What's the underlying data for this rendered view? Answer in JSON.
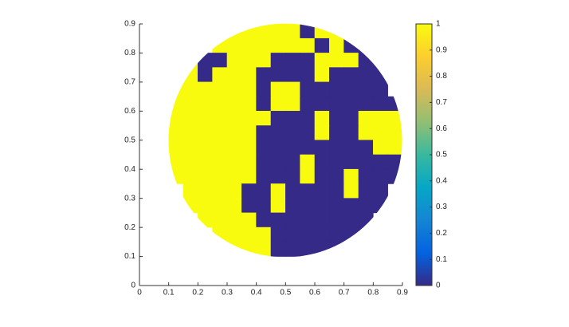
{
  "chart_data": {
    "type": "heatmap",
    "x": [
      0.025,
      0.075,
      0.125,
      0.175,
      0.225,
      0.275,
      0.325,
      0.375,
      0.425,
      0.475,
      0.525,
      0.575,
      0.625,
      0.675,
      0.725,
      0.775,
      0.825,
      0.875
    ],
    "y": [
      0.875,
      0.825,
      0.775,
      0.725,
      0.675,
      0.625,
      0.575,
      0.525,
      0.475,
      0.425,
      0.375,
      0.325,
      0.275,
      0.225,
      0.175,
      0.125,
      0.075,
      0.025
    ],
    "z": [
      [
        null,
        null,
        null,
        null,
        null,
        null,
        1,
        1,
        1,
        1,
        1,
        0,
        1,
        1,
        null,
        null,
        null,
        null
      ],
      [
        null,
        null,
        null,
        null,
        null,
        1,
        1,
        1,
        1,
        1,
        1,
        1,
        0,
        1,
        0,
        0,
        null,
        null
      ],
      [
        null,
        null,
        null,
        1,
        0,
        0,
        1,
        1,
        1,
        0,
        0,
        0,
        1,
        1,
        1,
        0,
        0,
        null
      ],
      [
        null,
        null,
        null,
        1,
        0,
        1,
        1,
        1,
        0,
        0,
        0,
        0,
        1,
        0,
        0,
        0,
        0,
        null
      ],
      [
        null,
        null,
        1,
        1,
        1,
        1,
        1,
        1,
        0,
        1,
        1,
        0,
        0,
        0,
        0,
        0,
        0,
        null
      ],
      [
        null,
        null,
        1,
        1,
        1,
        1,
        1,
        1,
        0,
        1,
        1,
        0,
        0,
        0,
        0,
        0,
        0,
        0
      ],
      [
        null,
        null,
        1,
        1,
        1,
        1,
        1,
        1,
        1,
        0,
        0,
        0,
        1,
        0,
        0,
        1,
        1,
        1
      ],
      [
        null,
        null,
        1,
        1,
        1,
        1,
        1,
        1,
        0,
        0,
        0,
        0,
        1,
        0,
        0,
        1,
        1,
        1
      ],
      [
        null,
        null,
        1,
        1,
        1,
        1,
        1,
        1,
        0,
        0,
        0,
        0,
        0,
        0,
        0,
        0,
        1,
        1
      ],
      [
        null,
        null,
        1,
        1,
        1,
        1,
        1,
        1,
        0,
        0,
        0,
        1,
        0,
        0,
        0,
        0,
        0,
        0
      ],
      [
        null,
        null,
        1,
        1,
        1,
        1,
        1,
        1,
        0,
        0,
        0,
        1,
        0,
        0,
        1,
        0,
        0,
        0
      ],
      [
        null,
        null,
        null,
        1,
        1,
        1,
        1,
        0,
        0,
        1,
        0,
        0,
        0,
        0,
        1,
        0,
        0,
        null
      ],
      [
        null,
        null,
        null,
        1,
        1,
        1,
        1,
        0,
        0,
        1,
        0,
        0,
        0,
        0,
        0,
        0,
        0,
        null
      ],
      [
        null,
        null,
        null,
        null,
        1,
        1,
        1,
        1,
        0,
        0,
        0,
        0,
        0,
        0,
        0,
        0,
        null,
        null
      ],
      [
        null,
        null,
        null,
        null,
        null,
        1,
        1,
        1,
        1,
        0,
        0,
        0,
        0,
        0,
        0,
        0,
        null,
        null
      ],
      [
        null,
        null,
        null,
        null,
        null,
        null,
        1,
        1,
        1,
        0,
        0,
        0,
        0,
        0,
        null,
        null,
        null,
        null
      ],
      [
        null,
        null,
        null,
        null,
        null,
        null,
        null,
        null,
        null,
        null,
        null,
        null,
        null,
        null,
        null,
        null,
        null,
        null
      ],
      [
        null,
        null,
        null,
        null,
        null,
        null,
        null,
        null,
        null,
        null,
        null,
        null,
        null,
        null,
        null,
        null,
        null,
        null
      ]
    ],
    "xlim": [
      0,
      0.9
    ],
    "ylim": [
      0,
      0.9
    ],
    "xticks": [
      0,
      0.1,
      0.2,
      0.3,
      0.4,
      0.5,
      0.6,
      0.7,
      0.8,
      0.9
    ],
    "yticks": [
      0,
      0.1,
      0.2,
      0.3,
      0.4,
      0.5,
      0.6,
      0.7,
      0.8,
      0.9
    ],
    "clim": [
      0,
      1
    ],
    "cticks": [
      0,
      0.1,
      0.2,
      0.3,
      0.4,
      0.5,
      0.6,
      0.7,
      0.8,
      0.9,
      1
    ],
    "colormap": [
      "#352a87",
      "#0363e1",
      "#1485d4",
      "#06a7c6",
      "#38b99e",
      "#92bf73",
      "#d9ba56",
      "#fcce2e",
      "#f9fb0e"
    ]
  }
}
